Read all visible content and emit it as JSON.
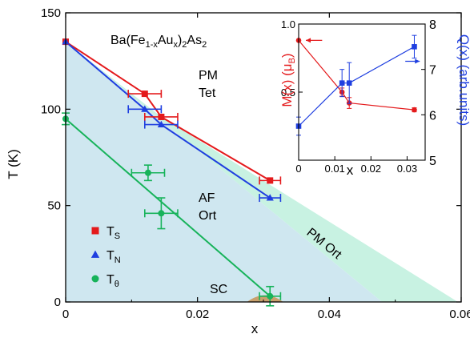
{
  "chart_data": [
    {
      "type": "scatter",
      "title_base": "Ba(Fe",
      "title_sub1": "1-x",
      "title_mid": "Au",
      "title_sub2": "x",
      "title_end": ")",
      "title_sub3": "2",
      "title_tail": "As",
      "title_sub4": "2",
      "xlabel": "x",
      "ylabel": "T (K)",
      "xlim": [
        0,
        0.06
      ],
      "ylim": [
        0,
        150
      ],
      "xticks": [
        "0",
        "0.02",
        "0.04",
        "0.06"
      ],
      "xtick_values": [
        0,
        0.02,
        0.04,
        0.06
      ],
      "yticks": [
        "0",
        "50",
        "100",
        "150"
      ],
      "ytick_values": [
        0,
        50,
        100,
        150
      ],
      "regions": {
        "pm_tet_line1": "PM",
        "pm_tet_line2": "Tet",
        "af_ort_line1": "AF",
        "af_ort_line2": "Ort",
        "pm_ort": "PM Ort",
        "sc": "SC"
      },
      "af_boundary": [
        [
          0,
          135
        ],
        [
          0.048,
          0
        ]
      ],
      "pm_ort_boundary": [
        [
          0.0145,
          96
        ],
        [
          0.0595,
          0
        ]
      ],
      "sc_dome": {
        "x_start": 0.0275,
        "x_end": 0.033,
        "peak": 3.5
      },
      "series": [
        {
          "legend_base": "T",
          "legend_sub": "S",
          "color": "#e41a1c",
          "marker": "square",
          "points": [
            {
              "x": 0,
              "y": 135,
              "xerr": 0
            },
            {
              "x": 0.012,
              "y": 108,
              "xerr": 0.0025
            },
            {
              "x": 0.0145,
              "y": 96,
              "xerr": 0.0025
            },
            {
              "x": 0.031,
              "y": 63,
              "xerr": 0.0016
            }
          ]
        },
        {
          "legend_base": "T",
          "legend_sub": "N",
          "color": "#1f3fe0",
          "marker": "triangle",
          "points": [
            {
              "x": 0,
              "y": 135,
              "xerr": 0
            },
            {
              "x": 0.012,
              "y": 100,
              "xerr": 0.0025
            },
            {
              "x": 0.0145,
              "y": 92,
              "xerr": 0.0025
            },
            {
              "x": 0.031,
              "y": 54,
              "xerr": 0.0016
            }
          ]
        },
        {
          "legend_base": "T",
          "legend_sub": "θ",
          "color": "#17b35a",
          "marker": "circle",
          "points": [
            {
              "x": 0,
              "y": 95,
              "yerr": 3,
              "xerr": 0
            },
            {
              "x": 0.0125,
              "y": 67,
              "yerr": 4,
              "xerr": 0.0025
            },
            {
              "x": 0.0145,
              "y": 46,
              "yerr": 8,
              "xerr": 0.0025
            },
            {
              "x": 0.031,
              "y": 3,
              "yerr": 5,
              "xerr": 0.0016
            }
          ]
        }
      ],
      "fit_lines": [
        {
          "color": "#e41a1c",
          "points": [
            [
              0,
              135
            ],
            [
              0.012,
              108
            ],
            [
              0.0145,
              96
            ],
            [
              0.031,
              63
            ]
          ]
        },
        {
          "color": "#1f3fe0",
          "points": [
            [
              0,
              135
            ],
            [
              0.012,
              100
            ],
            [
              0.0145,
              92
            ],
            [
              0.031,
              54
            ]
          ]
        },
        {
          "color": "#17b35a",
          "points": [
            [
              0,
              95
            ],
            [
              0.031,
              3
            ]
          ]
        }
      ],
      "colors": {
        "af_fill": "#cfe7f0",
        "pm_ort_fill": "#c8f2e2",
        "sc_fill": "#c9a06d"
      }
    },
    {
      "type": "line",
      "xlabel": "x",
      "ylabel_left_base": "M(x) (μ",
      "ylabel_left_sub": "B",
      "ylabel_left_end": ")",
      "ylabel_right": "Q(x) (arb.units)",
      "xlim": [
        0,
        0.035
      ],
      "ylim_left": [
        0,
        1
      ],
      "ylim_right": [
        5,
        8
      ],
      "xticks": [
        "0",
        "0.01",
        "0.02",
        "0.03"
      ],
      "xtick_values": [
        0,
        0.01,
        0.02,
        0.03
      ],
      "yticks_left": [
        "0",
        "0.5",
        "1.0"
      ],
      "ytick_left_values": [
        0,
        0.5,
        1.0
      ],
      "yticks_right": [
        "5",
        "6",
        "7",
        "8"
      ],
      "ytick_right_values": [
        5,
        6,
        7,
        8
      ],
      "series": [
        {
          "axis": "left",
          "color": "#e41a1c",
          "marker": "circle",
          "points": [
            {
              "x": 0,
              "y": 0.88,
              "yerr": 0
            },
            {
              "x": 0.012,
              "y": 0.5,
              "yerr": 0.03
            },
            {
              "x": 0.014,
              "y": 0.42,
              "yerr": 0.04
            },
            {
              "x": 0.032,
              "y": 0.37,
              "yerr": 0.015
            }
          ]
        },
        {
          "axis": "right",
          "color": "#1f3fe0",
          "marker": "square",
          "points": [
            {
              "x": 0,
              "y": 5.75,
              "yerr": 0.2
            },
            {
              "x": 0.012,
              "y": 6.7,
              "yerr": 0.3
            },
            {
              "x": 0.014,
              "y": 6.7,
              "yerr": 0.45
            },
            {
              "x": 0.032,
              "y": 7.5,
              "yerr": 0.25
            }
          ]
        }
      ]
    }
  ]
}
